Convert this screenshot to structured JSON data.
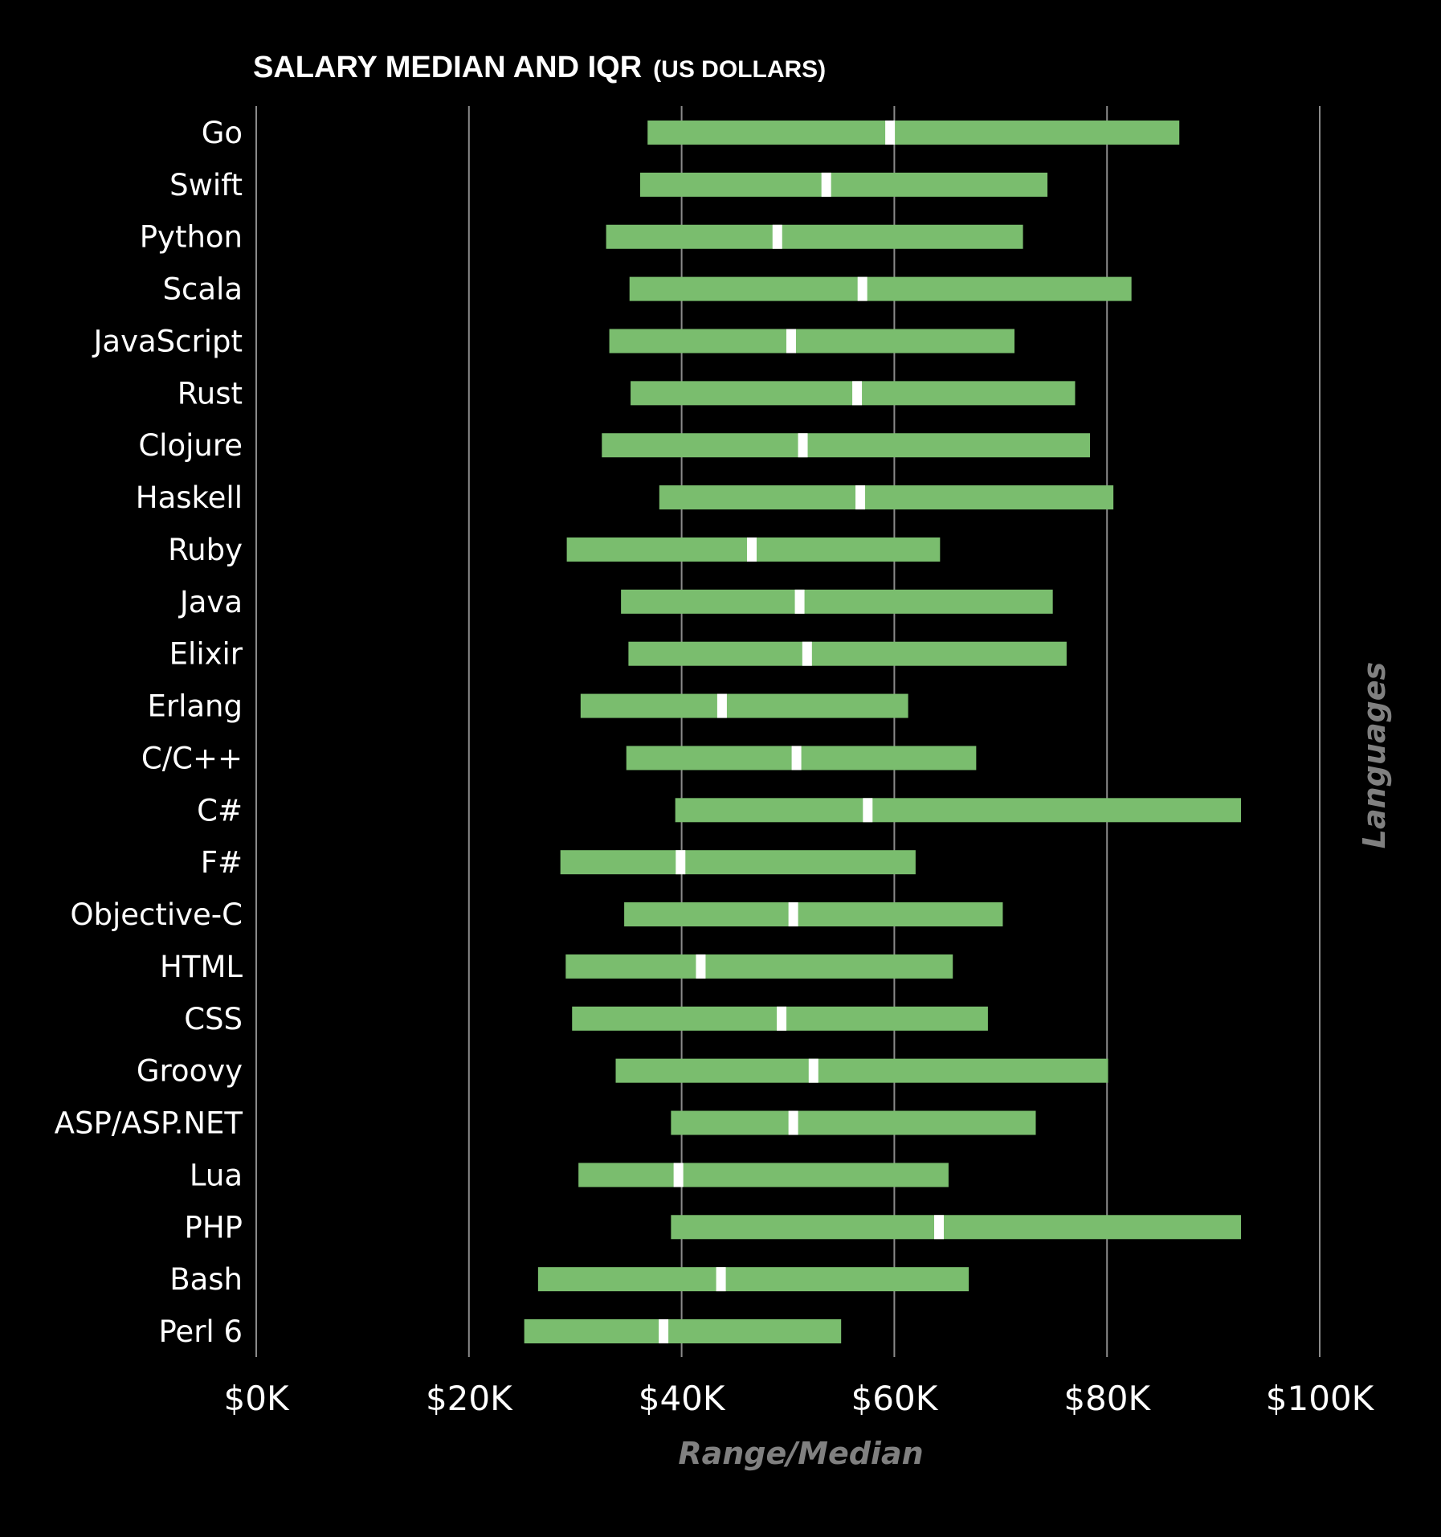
{
  "chart_data": {
    "type": "bar",
    "subtype": "range-with-median",
    "title": "SALARY MEDIAN AND IQR",
    "subtitle": "(US DOLLARS)",
    "xlabel": "Range/Median",
    "ylabel": "Languages",
    "xlim": [
      0,
      100000
    ],
    "xticks": [
      0,
      20000,
      40000,
      60000,
      80000,
      100000
    ],
    "xtick_labels": [
      "$0K",
      "$20K",
      "$40K",
      "$60K",
      "$80K",
      "$100K"
    ],
    "grid": true,
    "legend": "none",
    "colors": {
      "background": "#000000",
      "bar": "#7abd6e",
      "median": "#ffffff",
      "grid": "#8a8a8a",
      "axis_title": "#808080",
      "text": "#ffffff"
    },
    "categories": [
      "Go",
      "Swift",
      "Python",
      "Scala",
      "JavaScript",
      "Rust",
      "Clojure",
      "Haskell",
      "Ruby",
      "Java",
      "Elixir",
      "Erlang",
      "C/C++",
      "C#",
      "F#",
      "Objective-C",
      "HTML",
      "CSS",
      "Groovy",
      "ASP/ASP.NET",
      "Lua",
      "PHP",
      "Bash",
      "Perl 6"
    ],
    "q1": [
      36800,
      36100,
      32900,
      35100,
      33200,
      35200,
      32500,
      37900,
      29200,
      34300,
      35000,
      30500,
      34800,
      39400,
      28600,
      34600,
      29100,
      29700,
      33800,
      39000,
      30300,
      39000,
      26500,
      25200
    ],
    "median": [
      59600,
      53600,
      49000,
      57000,
      50300,
      56500,
      51400,
      56800,
      46600,
      51100,
      51800,
      43800,
      50800,
      57500,
      39900,
      50500,
      41800,
      49400,
      52400,
      50500,
      39700,
      64200,
      43700,
      38300
    ],
    "q3": [
      86800,
      74400,
      72100,
      82300,
      71300,
      77000,
      78400,
      80600,
      64300,
      74900,
      76200,
      61300,
      67700,
      92600,
      62000,
      70200,
      65500,
      68800,
      80100,
      73300,
      65100,
      92600,
      67000,
      55000
    ]
  }
}
